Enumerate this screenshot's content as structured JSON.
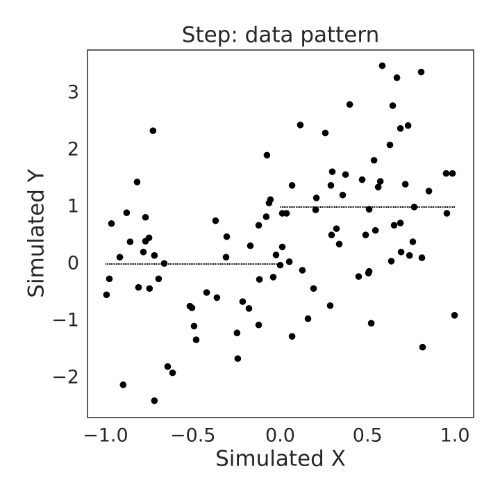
{
  "chart_data": {
    "type": "scatter",
    "title": "Step: data pattern",
    "x_label": "Simulated X",
    "y_label": "Simulated Y",
    "xlim": [
      -1.103,
      1.107
    ],
    "ylim": [
      -2.695,
      3.756
    ],
    "xticks": [
      {
        "value": -1.0,
        "label": "−1.0"
      },
      {
        "value": -0.5,
        "label": "−0.5"
      },
      {
        "value": 0.0,
        "label": "0.0"
      },
      {
        "value": 0.5,
        "label": "0.5"
      },
      {
        "value": 1.0,
        "label": "1.0"
      }
    ],
    "yticks": [
      {
        "value": -2,
        "label": "−2"
      },
      {
        "value": -1,
        "label": "−1"
      },
      0,
      1,
      2,
      3
    ],
    "grid": false,
    "series": [
      {
        "style": "points",
        "color": "#000000",
        "x": [
          -0.994,
          -0.978,
          -0.966,
          -0.918,
          -0.899,
          -0.879,
          -0.859,
          -0.819,
          -0.811,
          -0.783,
          -0.771,
          -0.771,
          -0.751,
          -0.748,
          -0.728,
          -0.72,
          -0.72,
          -0.696,
          -0.664,
          -0.644,
          -0.616,
          -0.517,
          -0.505,
          -0.493,
          -0.481,
          -0.421,
          -0.37,
          -0.362,
          -0.306,
          -0.31,
          -0.247,
          -0.243,
          -0.215,
          -0.179,
          -0.171,
          -0.123,
          -0.119,
          -0.123,
          -0.08,
          -0.076,
          -0.064,
          -0.056,
          -0.04,
          -0.024,
          0.0,
          0.012,
          0.012,
          0.036,
          0.052,
          0.068,
          0.068,
          0.115,
          0.127,
          0.159,
          0.191,
          0.207,
          0.203,
          0.258,
          0.286,
          0.29,
          0.294,
          0.298,
          0.322,
          0.338,
          0.358,
          0.374,
          0.398,
          0.449,
          0.469,
          0.489,
          0.505,
          0.509,
          0.509,
          0.521,
          0.537,
          0.545,
          0.561,
          0.573,
          0.584,
          0.628,
          0.636,
          0.644,
          0.652,
          0.668,
          0.688,
          0.688,
          0.692,
          0.716,
          0.732,
          0.74,
          0.759,
          0.767,
          0.807,
          0.811,
          0.815,
          0.851,
          0.95,
          0.954,
          0.986,
          0.998
        ],
        "values": [
          -0.54,
          -0.26,
          0.71,
          0.12,
          -2.12,
          0.9,
          0.39,
          1.44,
          -0.41,
          0.21,
          0.82,
          0.4,
          0.46,
          -0.43,
          2.34,
          0.15,
          -2.4,
          -0.26,
          0.01,
          -1.8,
          -1.91,
          -0.74,
          -0.77,
          -1.09,
          -1.33,
          -0.5,
          0.76,
          -0.59,
          0.48,
          0.12,
          -1.21,
          -1.66,
          -0.66,
          -0.78,
          0.32,
          0.68,
          -0.27,
          -1.07,
          0.83,
          1.91,
          1.07,
          1.13,
          -0.23,
          0.16,
          -0.02,
          0.3,
          0.89,
          0.89,
          0.04,
          -1.27,
          1.38,
          2.44,
          -0.11,
          -0.96,
          -0.43,
          1.16,
          0.95,
          2.3,
          -0.73,
          1.38,
          0.51,
          1.62,
          0.62,
          0.35,
          1.21,
          1.57,
          2.8,
          -0.22,
          1.48,
          0.51,
          -0.16,
          -0.13,
          0.96,
          -1.04,
          1.82,
          0.59,
          1.35,
          1.45,
          3.48,
          2.09,
          0.05,
          2.78,
          0.68,
          3.27,
          0.72,
          2.38,
          0.21,
          1.4,
          2.43,
          0.15,
          0.39,
          1.0,
          3.37,
          0.11,
          -1.46,
          1.28,
          1.59,
          0.89,
          1.59,
          -0.9
        ]
      },
      {
        "style": "line",
        "color": "#000000",
        "x": [
          -1,
          0,
          0,
          0,
          1
        ],
        "values": [
          0,
          0,
          null,
          1,
          1
        ]
      }
    ]
  }
}
